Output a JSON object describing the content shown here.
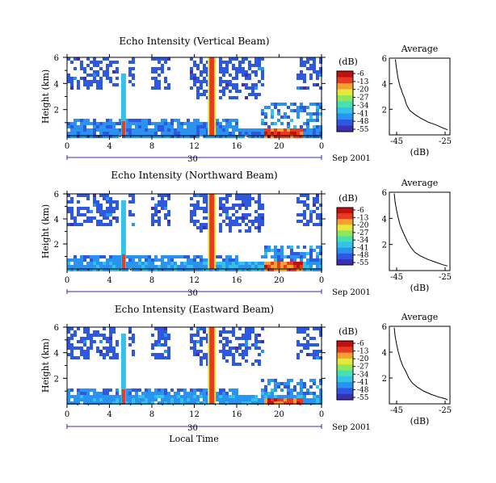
{
  "shared": {
    "x_ticks": [
      "0",
      "4",
      "8",
      "12",
      "16",
      "20",
      "0"
    ],
    "date_day": "30",
    "date_label": "Sep 2001",
    "xlabel": "Local Time",
    "ylabel": "Height (km)",
    "y_ticks": [
      "2",
      "4",
      "6"
    ],
    "colorbar_unit": "(dB)",
    "avg_title": "Average",
    "avg_xlabel": "(dB)",
    "avg_y_ticks": [
      "2",
      "4",
      "6"
    ]
  },
  "colors": {
    "scale": [
      "#3b2fb5",
      "#2f58e0",
      "#2a92f0",
      "#33c2e8",
      "#48e0b0",
      "#8fe85a",
      "#e6e83a",
      "#f7a032",
      "#e83a22",
      "#c11010"
    ]
  },
  "chart_data": [
    {
      "type": "heatmap",
      "title": "Echo Intensity (Vertical Beam)",
      "ylabel": "Height (km)",
      "xlabel": "",
      "xlim": [
        0,
        24
      ],
      "ylim": [
        0,
        6
      ],
      "colorbar": {
        "label": "(dB)",
        "ticks": [
          "-6",
          "-13",
          "-20",
          "-27",
          "-34",
          "-41",
          "-48",
          "-55"
        ]
      },
      "average_profile": {
        "title": "Average",
        "xlabel": "(dB)",
        "x_ticks": [
          "-45",
          "-25"
        ],
        "xlim": [
          -48,
          -23
        ],
        "ylim": [
          0,
          6
        ],
        "points": [
          [
            -45.5,
            5.9
          ],
          [
            -45.2,
            5.4
          ],
          [
            -44.8,
            4.9
          ],
          [
            -44.5,
            4.5
          ],
          [
            -44,
            4.1
          ],
          [
            -43.6,
            3.8
          ],
          [
            -43,
            3.5
          ],
          [
            -42.5,
            3.2
          ],
          [
            -41.8,
            2.9
          ],
          [
            -41,
            2.4
          ],
          [
            -40.2,
            2.1
          ],
          [
            -39.5,
            1.9
          ],
          [
            -37.5,
            1.6
          ],
          [
            -35,
            1.3
          ],
          [
            -32,
            1.0
          ],
          [
            -29,
            0.8
          ],
          [
            -26,
            0.55
          ],
          [
            -24,
            0.4
          ]
        ]
      }
    },
    {
      "type": "heatmap",
      "title": "Echo Intensity (Northward Beam)",
      "ylabel": "Height (km)",
      "xlabel": "",
      "xlim": [
        0,
        24
      ],
      "ylim": [
        0,
        6
      ],
      "colorbar": {
        "label": "(dB)",
        "ticks": [
          "-6",
          "-13",
          "-20",
          "-27",
          "-34",
          "-41",
          "-48",
          "-55"
        ]
      },
      "average_profile": {
        "title": "Average",
        "xlabel": "(dB)",
        "x_ticks": [
          "-45",
          "-25"
        ],
        "xlim": [
          -48,
          -23
        ],
        "ylim": [
          0,
          6
        ],
        "points": [
          [
            -46,
            5.9
          ],
          [
            -45.6,
            5.2
          ],
          [
            -45,
            4.6
          ],
          [
            -44.3,
            4.0
          ],
          [
            -43.6,
            3.5
          ],
          [
            -42.5,
            3.0
          ],
          [
            -41.5,
            2.6
          ],
          [
            -40.5,
            2.2
          ],
          [
            -39.2,
            1.8
          ],
          [
            -37.5,
            1.4
          ],
          [
            -35,
            1.1
          ],
          [
            -32,
            0.85
          ],
          [
            -29,
            0.65
          ],
          [
            -26,
            0.45
          ],
          [
            -24,
            0.35
          ]
        ]
      }
    },
    {
      "type": "heatmap",
      "title": "Echo Intensity (Eastward Beam)",
      "ylabel": "Height (km)",
      "xlabel": "Local Time",
      "xlim": [
        0,
        24
      ],
      "ylim": [
        0,
        6
      ],
      "colorbar": {
        "label": "(dB)",
        "ticks": [
          "-6",
          "-13",
          "-20",
          "-27",
          "-34",
          "-41",
          "-48",
          "-55"
        ]
      },
      "average_profile": {
        "title": "Average",
        "xlabel": "(dB)",
        "x_ticks": [
          "-45",
          "-25"
        ],
        "xlim": [
          -48,
          -23
        ],
        "ylim": [
          0,
          6
        ],
        "points": [
          [
            -46,
            5.9
          ],
          [
            -45.6,
            5.2
          ],
          [
            -45,
            4.6
          ],
          [
            -44.3,
            4.0
          ],
          [
            -43.4,
            3.4
          ],
          [
            -42.4,
            2.9
          ],
          [
            -41.2,
            2.5
          ],
          [
            -40,
            2.0
          ],
          [
            -38.5,
            1.6
          ],
          [
            -36.5,
            1.3
          ],
          [
            -34,
            1.0
          ],
          [
            -31,
            0.75
          ],
          [
            -28,
            0.55
          ],
          [
            -25,
            0.4
          ],
          [
            -24,
            0.3
          ]
        ]
      }
    }
  ]
}
